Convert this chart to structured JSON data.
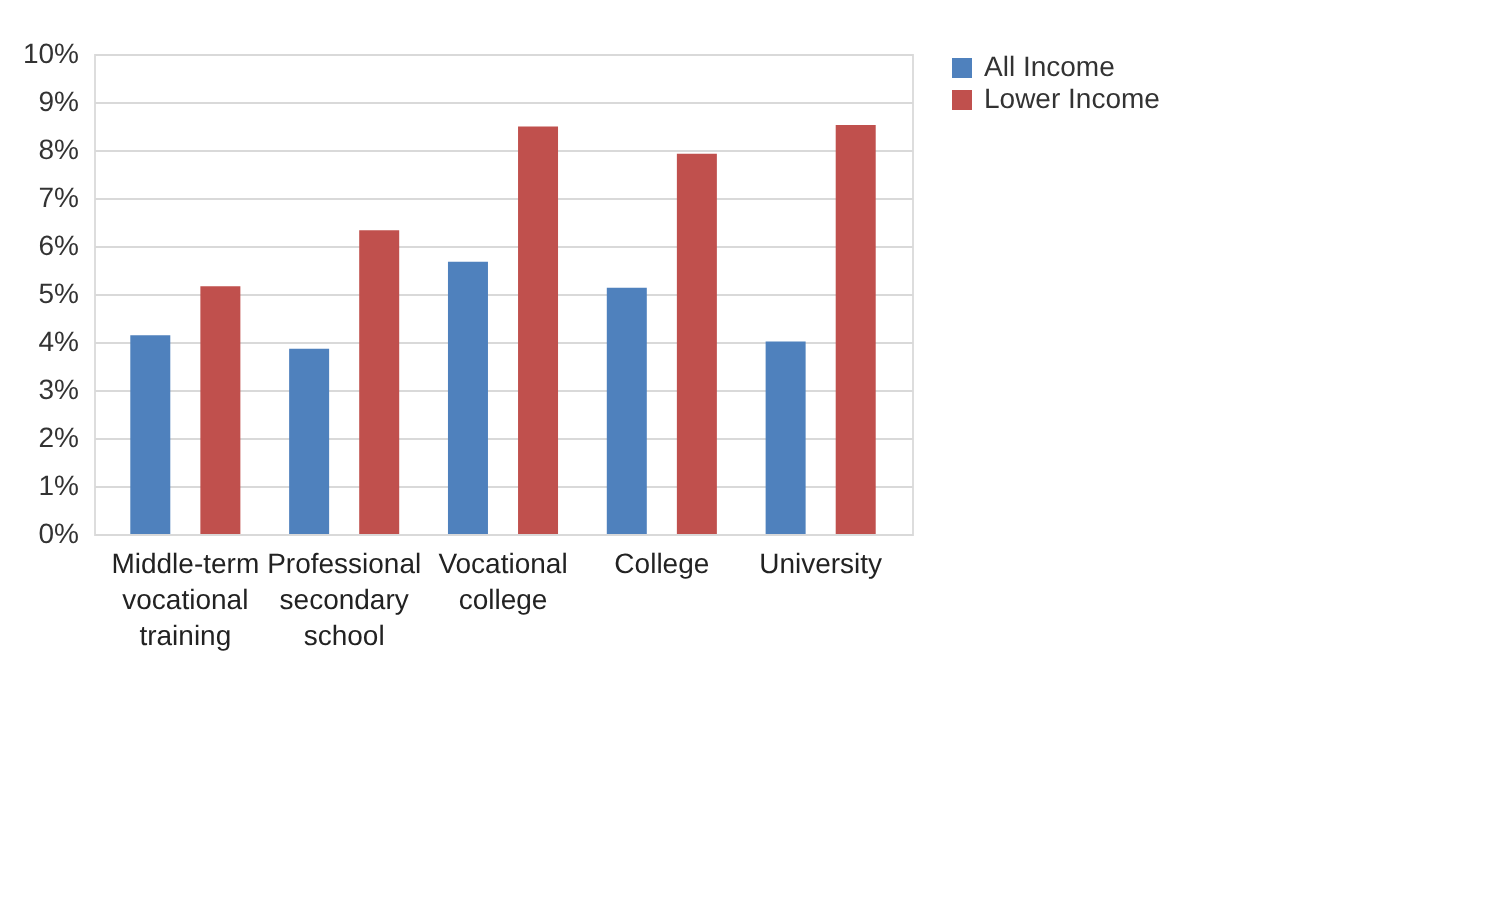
{
  "chart_data": {
    "type": "bar",
    "categories": [
      "Middle-term\nvocational\ntraining",
      "Professional\nsecondary\nschool",
      "Vocational\ncollege",
      "College",
      "University"
    ],
    "series": [
      {
        "name": "All Income",
        "color": "#4f81bd",
        "values": [
          4.14,
          3.86,
          5.67,
          5.13,
          4.01
        ]
      },
      {
        "name": "Lower Income",
        "color": "#c0504d",
        "values": [
          5.16,
          6.33,
          8.49,
          7.92,
          8.52
        ]
      }
    ],
    "ylim": [
      0,
      10
    ],
    "yticks": [
      {
        "value": 0,
        "label": "0%"
      },
      {
        "value": 1,
        "label": "1%"
      },
      {
        "value": 2,
        "label": "2%"
      },
      {
        "value": 3,
        "label": "3%"
      },
      {
        "value": 4,
        "label": "4%"
      },
      {
        "value": 5,
        "label": "5%"
      },
      {
        "value": 6,
        "label": "6%"
      },
      {
        "value": 7,
        "label": "7%"
      },
      {
        "value": 8,
        "label": "8%"
      },
      {
        "value": 9,
        "label": "9%"
      },
      {
        "value": 10,
        "label": "10%"
      }
    ],
    "grid": "y",
    "legend": "right"
  }
}
